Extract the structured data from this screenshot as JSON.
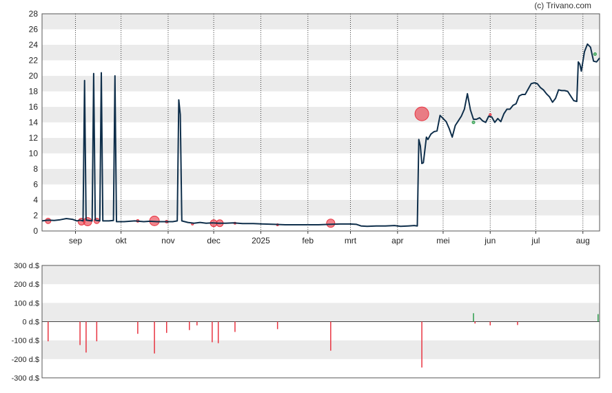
{
  "copyright": "(c) Trivano.com",
  "chart_data": [
    {
      "type": "line",
      "name": "price-chart",
      "ylim": [
        0,
        28
      ],
      "yticks": [
        0,
        2,
        4,
        6,
        8,
        10,
        12,
        14,
        16,
        18,
        20,
        22,
        24,
        26,
        28
      ],
      "xlim": [
        "2024-08-10",
        "2025-08-12"
      ],
      "xticks": [
        {
          "label": "sep",
          "date": "2024-09-01"
        },
        {
          "label": "okt",
          "date": "2024-10-01"
        },
        {
          "label": "nov",
          "date": "2024-11-01"
        },
        {
          "label": "dec",
          "date": "2024-12-01"
        },
        {
          "label": "2025",
          "date": "2025-01-01"
        },
        {
          "label": "feb",
          "date": "2025-02-01"
        },
        {
          "label": "mrt",
          "date": "2025-03-01"
        },
        {
          "label": "apr",
          "date": "2025-04-01"
        },
        {
          "label": "mei",
          "date": "2025-05-01"
        },
        {
          "label": "jun",
          "date": "2025-06-01"
        },
        {
          "label": "jul",
          "date": "2025-07-01"
        },
        {
          "label": "aug",
          "date": "2025-08-01"
        }
      ],
      "grid": true,
      "line_color": "#0e2e4a",
      "series": [
        {
          "points": [
            [
              "2024-08-10",
              1.3
            ],
            [
              "2024-08-14",
              1.4
            ],
            [
              "2024-08-18",
              1.35
            ],
            [
              "2024-08-22",
              1.45
            ],
            [
              "2024-08-26",
              1.6
            ],
            [
              "2024-08-30",
              1.5
            ],
            [
              "2024-09-02",
              1.3
            ],
            [
              "2024-09-04",
              1.4
            ],
            [
              "2024-09-06",
              1.3
            ],
            [
              "2024-09-07",
              19.4
            ],
            [
              "2024-09-08",
              1.4
            ],
            [
              "2024-09-12",
              1.3
            ],
            [
              "2024-09-13",
              20.3
            ],
            [
              "2024-09-14",
              1.4
            ],
            [
              "2024-09-17",
              1.3
            ],
            [
              "2024-09-18",
              20.4
            ],
            [
              "2024-09-19",
              1.3
            ],
            [
              "2024-09-23",
              1.3
            ],
            [
              "2024-09-26",
              1.35
            ],
            [
              "2024-09-27",
              20.0
            ],
            [
              "2024-09-28",
              1.2
            ],
            [
              "2024-10-03",
              1.2
            ],
            [
              "2024-10-10",
              1.3
            ],
            [
              "2024-10-16",
              1.2
            ],
            [
              "2024-10-20",
              1.25
            ],
            [
              "2024-10-25",
              1.2
            ],
            [
              "2024-10-30",
              1.2
            ],
            [
              "2024-11-01",
              1.2
            ],
            [
              "2024-11-04",
              1.2
            ],
            [
              "2024-11-07",
              1.3
            ],
            [
              "2024-11-08",
              16.9
            ],
            [
              "2024-11-09",
              15.0
            ],
            [
              "2024-11-10",
              1.3
            ],
            [
              "2024-11-14",
              1.1
            ],
            [
              "2024-11-18",
              1.0
            ],
            [
              "2024-11-22",
              1.1
            ],
            [
              "2024-11-26",
              1.0
            ],
            [
              "2024-11-30",
              1.05
            ],
            [
              "2024-12-04",
              1.0
            ],
            [
              "2024-12-09",
              1.0
            ],
            [
              "2024-12-14",
              1.05
            ],
            [
              "2024-12-20",
              0.95
            ],
            [
              "2024-12-27",
              0.95
            ],
            [
              "2025-01-03",
              0.9
            ],
            [
              "2025-01-10",
              0.85
            ],
            [
              "2025-01-17",
              0.8
            ],
            [
              "2025-01-24",
              0.8
            ],
            [
              "2025-02-01",
              0.8
            ],
            [
              "2025-02-08",
              0.8
            ],
            [
              "2025-02-15",
              0.85
            ],
            [
              "2025-02-22",
              0.9
            ],
            [
              "2025-03-01",
              0.9
            ],
            [
              "2025-03-05",
              0.85
            ],
            [
              "2025-03-08",
              0.65
            ],
            [
              "2025-03-12",
              0.6
            ],
            [
              "2025-03-18",
              0.65
            ],
            [
              "2025-03-24",
              0.65
            ],
            [
              "2025-03-30",
              0.7
            ],
            [
              "2025-04-03",
              0.6
            ],
            [
              "2025-04-08",
              0.65
            ],
            [
              "2025-04-12",
              0.7
            ],
            [
              "2025-04-14",
              0.65
            ],
            [
              "2025-04-15",
              11.8
            ],
            [
              "2025-04-16",
              11.0
            ],
            [
              "2025-04-17",
              8.7
            ],
            [
              "2025-04-18",
              8.8
            ],
            [
              "2025-04-20",
              12.1
            ],
            [
              "2025-04-21",
              11.8
            ],
            [
              "2025-04-23",
              12.5
            ],
            [
              "2025-04-25",
              12.8
            ],
            [
              "2025-04-27",
              12.9
            ],
            [
              "2025-04-29",
              14.9
            ],
            [
              "2025-05-01",
              14.5
            ],
            [
              "2025-05-03",
              14.1
            ],
            [
              "2025-05-05",
              13.2
            ],
            [
              "2025-05-07",
              12.1
            ],
            [
              "2025-05-09",
              13.6
            ],
            [
              "2025-05-11",
              14.2
            ],
            [
              "2025-05-13",
              14.8
            ],
            [
              "2025-05-15",
              15.7
            ],
            [
              "2025-05-17",
              17.7
            ],
            [
              "2025-05-19",
              15.6
            ],
            [
              "2025-05-21",
              14.4
            ],
            [
              "2025-05-23",
              14.4
            ],
            [
              "2025-05-25",
              14.6
            ],
            [
              "2025-05-27",
              14.2
            ],
            [
              "2025-05-29",
              14.0
            ],
            [
              "2025-05-31",
              14.8
            ],
            [
              "2025-06-02",
              14.7
            ],
            [
              "2025-06-04",
              14.0
            ],
            [
              "2025-06-06",
              14.5
            ],
            [
              "2025-06-08",
              14.1
            ],
            [
              "2025-06-10",
              15.1
            ],
            [
              "2025-06-12",
              15.7
            ],
            [
              "2025-06-14",
              15.7
            ],
            [
              "2025-06-16",
              16.2
            ],
            [
              "2025-06-18",
              16.4
            ],
            [
              "2025-06-20",
              17.4
            ],
            [
              "2025-06-22",
              17.6
            ],
            [
              "2025-06-24",
              17.6
            ],
            [
              "2025-06-26",
              18.3
            ],
            [
              "2025-06-28",
              19.0
            ],
            [
              "2025-06-30",
              19.1
            ],
            [
              "2025-07-02",
              19.0
            ],
            [
              "2025-07-04",
              18.5
            ],
            [
              "2025-07-06",
              18.2
            ],
            [
              "2025-07-08",
              17.7
            ],
            [
              "2025-07-10",
              17.3
            ],
            [
              "2025-07-12",
              16.6
            ],
            [
              "2025-07-14",
              17.1
            ],
            [
              "2025-07-16",
              18.2
            ],
            [
              "2025-07-18",
              18.1
            ],
            [
              "2025-07-20",
              18.1
            ],
            [
              "2025-07-22",
              18.0
            ],
            [
              "2025-07-24",
              17.4
            ],
            [
              "2025-07-26",
              16.8
            ],
            [
              "2025-07-28",
              16.7
            ],
            [
              "2025-07-29",
              21.8
            ],
            [
              "2025-07-30",
              21.5
            ],
            [
              "2025-07-31",
              20.6
            ],
            [
              "2025-08-02",
              23.1
            ],
            [
              "2025-08-04",
              24.1
            ],
            [
              "2025-08-06",
              23.7
            ],
            [
              "2025-08-08",
              21.9
            ],
            [
              "2025-08-10",
              21.8
            ],
            [
              "2025-08-12",
              22.3
            ]
          ]
        }
      ],
      "bubbles": [
        {
          "date": "2024-08-14",
          "value": 1.3,
          "size": 4,
          "color": "#e8323f"
        },
        {
          "date": "2024-09-05",
          "value": 1.2,
          "size": 5,
          "color": "#e8323f"
        },
        {
          "date": "2024-09-09",
          "value": 1.2,
          "size": 6,
          "color": "#e8323f"
        },
        {
          "date": "2024-09-15",
          "value": 1.3,
          "size": 4,
          "color": "#e8323f"
        },
        {
          "date": "2024-10-12",
          "value": 1.3,
          "size": 2,
          "color": "#e8323f"
        },
        {
          "date": "2024-10-23",
          "value": 1.3,
          "size": 7,
          "color": "#e8323f"
        },
        {
          "date": "2024-10-31",
          "value": 1.2,
          "size": 2,
          "color": "#e8323f"
        },
        {
          "date": "2024-11-17",
          "value": 0.9,
          "size": 1.5,
          "color": "#e8323f"
        },
        {
          "date": "2024-12-01",
          "value": 1.0,
          "size": 5,
          "color": "#e8323f"
        },
        {
          "date": "2024-12-05",
          "value": 1.0,
          "size": 5,
          "color": "#e8323f"
        },
        {
          "date": "2024-12-15",
          "value": 1.0,
          "size": 1.5,
          "color": "#e8323f"
        },
        {
          "date": "2025-01-12",
          "value": 0.8,
          "size": 1.5,
          "color": "#e8323f"
        },
        {
          "date": "2025-02-16",
          "value": 1.0,
          "size": 6,
          "color": "#e8323f"
        },
        {
          "date": "2025-04-17",
          "value": 15.1,
          "size": 10,
          "color": "#e8323f"
        },
        {
          "date": "2025-05-21",
          "value": 14.0,
          "size": 2,
          "color": "#2a9d4a"
        },
        {
          "date": "2025-06-01",
          "value": 15.0,
          "size": 1.5,
          "color": "#e8323f"
        },
        {
          "date": "2025-08-09",
          "value": 22.8,
          "size": 2,
          "color": "#2a9d4a"
        }
      ]
    },
    {
      "type": "bar",
      "name": "volume-chart",
      "ylim": [
        -300,
        300
      ],
      "yticks": [
        {
          "value": 300,
          "label": "300 d.$"
        },
        {
          "value": 200,
          "label": "200 d.$"
        },
        {
          "value": 100,
          "label": "100 d.$"
        },
        {
          "value": 0,
          "label": "0 d.$"
        },
        {
          "value": -100,
          "label": "-100 d.$"
        },
        {
          "value": -200,
          "label": "-200 d.$"
        },
        {
          "value": -300,
          "label": "-300 d.$"
        }
      ],
      "grid": true,
      "positive_color": "#2a9d4a",
      "negative_color": "#e8323f",
      "bars": [
        {
          "date": "2024-08-14",
          "value": -105
        },
        {
          "date": "2024-09-04",
          "value": -125
        },
        {
          "date": "2024-09-08",
          "value": -165
        },
        {
          "date": "2024-09-15",
          "value": -105
        },
        {
          "date": "2024-10-12",
          "value": -65
        },
        {
          "date": "2024-10-23",
          "value": -170
        },
        {
          "date": "2024-10-31",
          "value": -60
        },
        {
          "date": "2024-11-15",
          "value": -45
        },
        {
          "date": "2024-11-20",
          "value": -20
        },
        {
          "date": "2024-11-30",
          "value": -110
        },
        {
          "date": "2024-12-04",
          "value": -115
        },
        {
          "date": "2024-12-15",
          "value": -55
        },
        {
          "date": "2025-01-12",
          "value": -40
        },
        {
          "date": "2025-02-16",
          "value": -155
        },
        {
          "date": "2025-04-17",
          "value": -245
        },
        {
          "date": "2025-05-21",
          "value": 45
        },
        {
          "date": "2025-05-22",
          "value": -10
        },
        {
          "date": "2025-06-01",
          "value": -20
        },
        {
          "date": "2025-06-19",
          "value": -18
        },
        {
          "date": "2025-08-11",
          "value": 40
        }
      ]
    }
  ]
}
